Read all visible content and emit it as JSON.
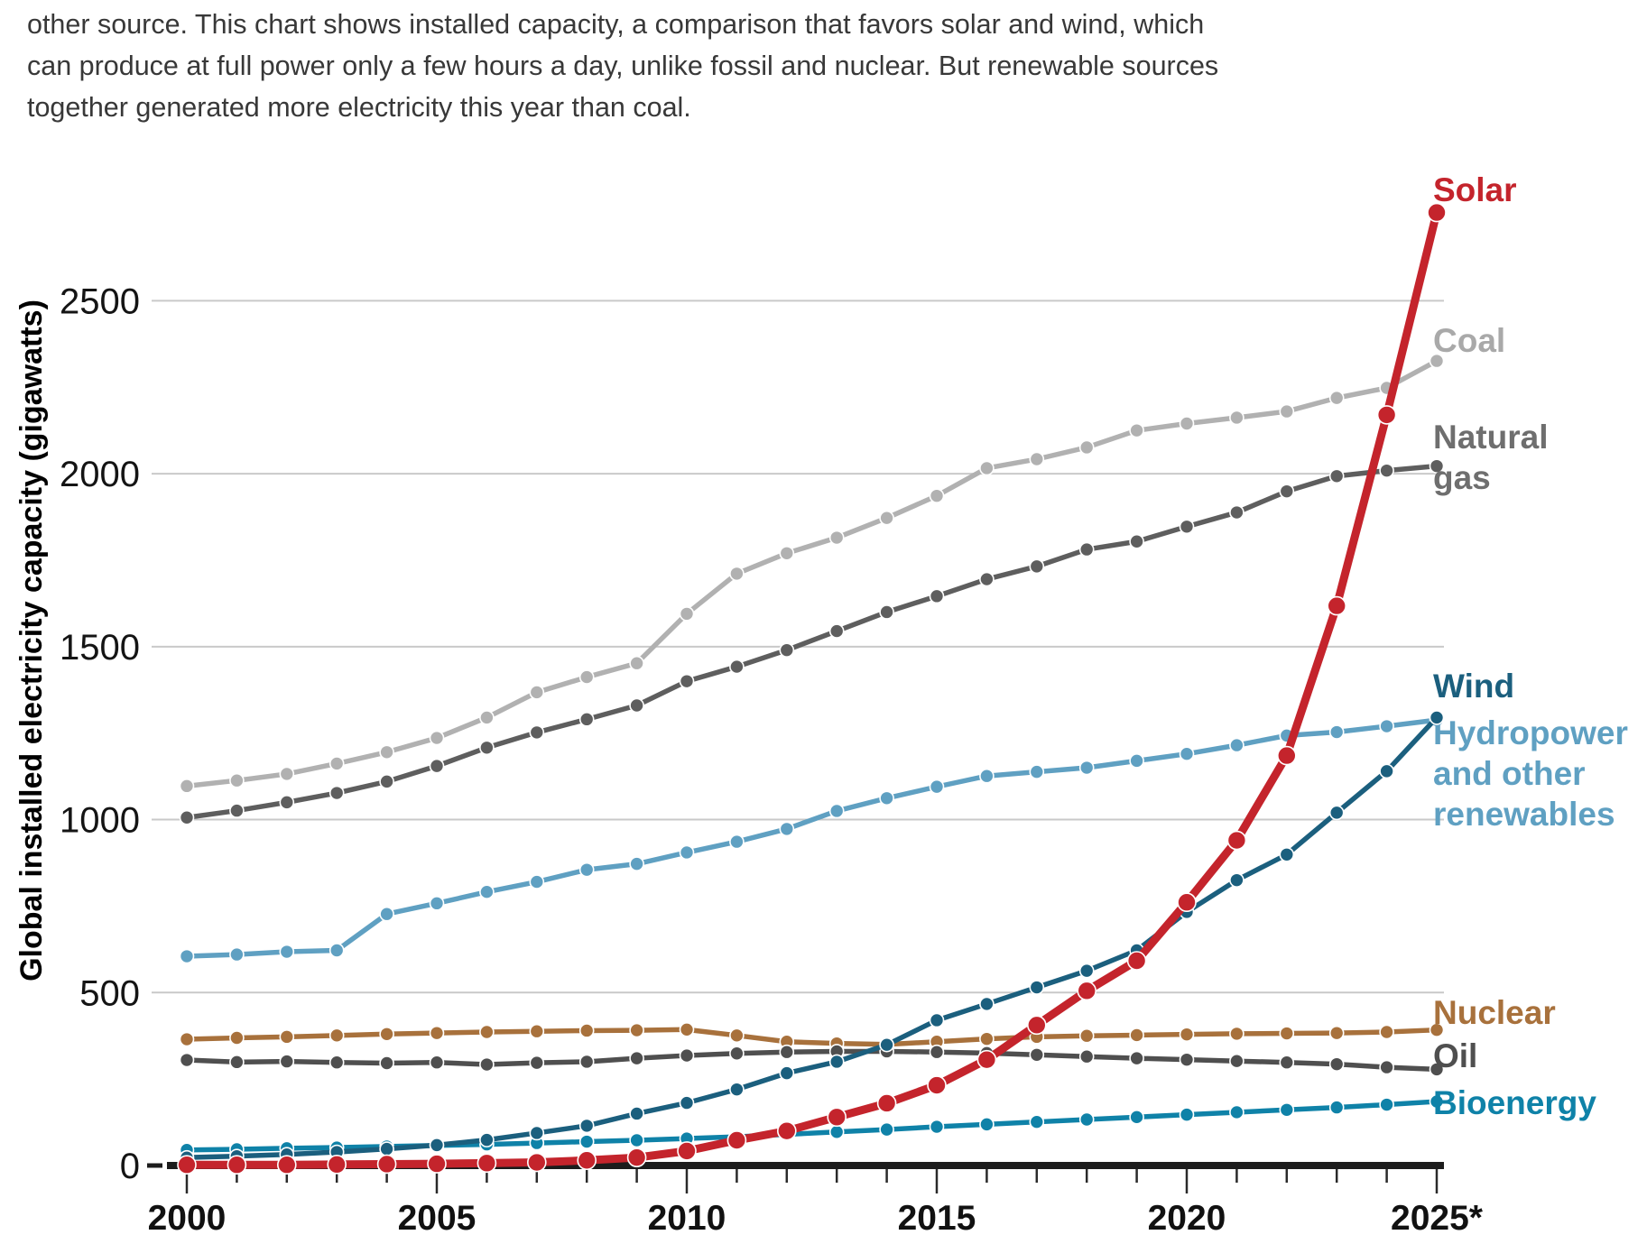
{
  "intro": {
    "lines": [
      "other source. This chart shows installed capacity, a comparison that favors solar and wind, which",
      "can produce at full power only a few hours a day, unlike fossil and nuclear. But renewable sources",
      "together generated more electricity this year than coal."
    ]
  },
  "chart_data": {
    "type": "line",
    "title": "",
    "xlabel": "",
    "ylabel": "Global installed electricity capacity (gigawatts)",
    "ylim": [
      0,
      2800
    ],
    "xlim": [
      2000,
      2025
    ],
    "grid": true,
    "legend_position": "right-annotations",
    "y_ticks": [
      0,
      500,
      1000,
      1500,
      2000,
      2500
    ],
    "x": [
      2000,
      2001,
      2002,
      2003,
      2004,
      2005,
      2006,
      2007,
      2008,
      2009,
      2010,
      2011,
      2012,
      2013,
      2014,
      2015,
      2016,
      2017,
      2018,
      2019,
      2020,
      2021,
      2022,
      2023,
      2024,
      2025
    ],
    "x_tick_labels": [
      {
        "year": 2000,
        "label": "2000"
      },
      {
        "year": 2005,
        "label": "2005"
      },
      {
        "year": 2010,
        "label": "2010"
      },
      {
        "year": 2015,
        "label": "2015"
      },
      {
        "year": 2020,
        "label": "2020"
      },
      {
        "year": 2025,
        "label": "2025*"
      }
    ],
    "series": [
      {
        "name": "Coal",
        "color": "#b1b1b1",
        "label_color": "#a9a9a9",
        "label_lines": [
          "Coal"
        ],
        "label_y": 255,
        "values": [
          1097,
          1113,
          1132,
          1162,
          1195,
          1236,
          1295,
          1368,
          1412,
          1452,
          1595,
          1711,
          1770,
          1815,
          1872,
          1936,
          2016,
          2042,
          2076,
          2125,
          2145,
          2162,
          2180,
          2219,
          2248,
          2326
        ]
      },
      {
        "name": "Natural gas",
        "color": "#5e5e5e",
        "label_color": "#6e6e6e",
        "label_lines": [
          "Natural",
          "gas"
        ],
        "label_y": 362,
        "values": [
          1006,
          1026,
          1050,
          1077,
          1110,
          1155,
          1208,
          1252,
          1290,
          1330,
          1400,
          1442,
          1490,
          1545,
          1600,
          1646,
          1695,
          1732,
          1781,
          1804,
          1847,
          1888,
          1949,
          1993,
          2009,
          2022
        ]
      },
      {
        "name": "Hydropower and other renewables",
        "color": "#5fa0c2",
        "label_color": "#5fa0c2",
        "label_lines": [
          "Hydropower",
          "and other",
          "renewables"
        ],
        "label_y": 690,
        "values": [
          605,
          610,
          618,
          622,
          727,
          758,
          791,
          820,
          855,
          872,
          905,
          936,
          973,
          1025,
          1062,
          1095,
          1126,
          1138,
          1150,
          1170,
          1190,
          1215,
          1243,
          1253,
          1270,
          1288
        ]
      },
      {
        "name": "Nuclear",
        "color": "#a8713c",
        "label_color": "#a8713c",
        "label_lines": [
          "Nuclear"
        ],
        "label_y": 1000,
        "values": [
          365,
          369,
          372,
          376,
          380,
          383,
          386,
          388,
          390,
          391,
          393,
          376,
          358,
          353,
          350,
          358,
          366,
          372,
          375,
          377,
          379,
          381,
          382,
          383,
          386,
          392
        ]
      },
      {
        "name": "Oil",
        "color": "#4f4f4f",
        "label_color": "#4f4f4f",
        "label_lines": [
          "Oil"
        ],
        "label_y": 1048,
        "values": [
          305,
          299,
          301,
          298,
          296,
          298,
          292,
          297,
          300,
          310,
          318,
          324,
          328,
          330,
          330,
          328,
          325,
          320,
          315,
          310,
          306,
          302,
          298,
          293,
          284,
          278
        ]
      },
      {
        "name": "Bioenergy",
        "color": "#0f82a8",
        "label_color": "#0f82a8",
        "label_lines": [
          "Bioenergy"
        ],
        "label_y": 1100,
        "values": [
          45,
          47,
          50,
          52,
          55,
          58,
          61,
          65,
          69,
          73,
          78,
          83,
          90,
          97,
          104,
          112,
          119,
          126,
          133,
          140,
          147,
          154,
          161,
          168,
          176,
          185
        ]
      },
      {
        "name": "Wind",
        "color": "#1b5f7e",
        "label_color": "#1b5f7e",
        "label_lines": [
          "Wind"
        ],
        "label_y": 638,
        "values": [
          23,
          27,
          32,
          39,
          48,
          59,
          74,
          94,
          115,
          150,
          181,
          220,
          267,
          300,
          349,
          420,
          467,
          515,
          563,
          622,
          733,
          825,
          899,
          1020,
          1140,
          1295
        ]
      },
      {
        "name": "Solar",
        "color": "#c4242c",
        "label_color": "#c4242c",
        "label_lines": [
          "Solar"
        ],
        "label_y": 88,
        "values": [
          2,
          2,
          2,
          3,
          4,
          5,
          7,
          9,
          15,
          23,
          42,
          73,
          100,
          140,
          180,
          232,
          306,
          406,
          505,
          592,
          761,
          940,
          1185,
          1618,
          2170,
          2755
        ]
      }
    ]
  }
}
